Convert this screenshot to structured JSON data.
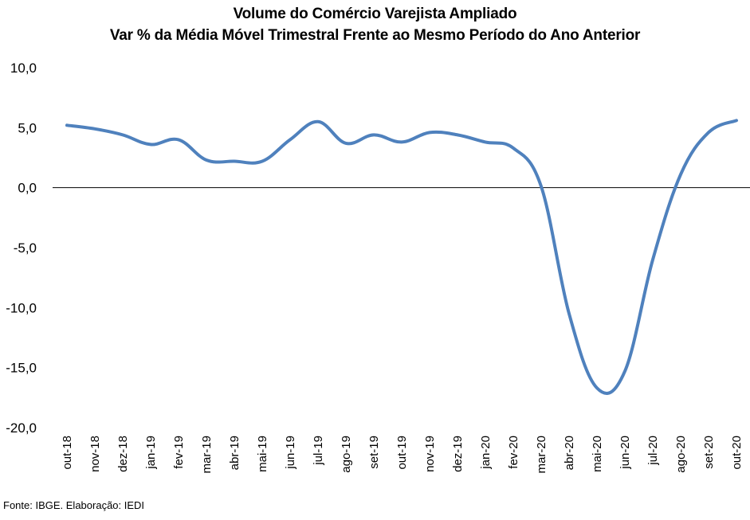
{
  "chart_data": {
    "type": "line",
    "title": "Volume do Comércio Varejista Ampliado",
    "subtitle": "Var % da Média Móvel Trimestral Frente ao Mesmo Período do Ano Anterior",
    "xlabel": "",
    "ylabel": "",
    "ylim": [
      -20,
      10
    ],
    "yticks": [
      "10,0",
      "5,0",
      "0,0",
      "-5,0",
      "-10,0",
      "-15,0",
      "-20,0"
    ],
    "ytick_values": [
      10,
      5,
      0,
      -5,
      -10,
      -15,
      -20
    ],
    "categories": [
      "out-18",
      "nov-18",
      "dez-18",
      "jan-19",
      "fev-19",
      "mar-19",
      "abr-19",
      "mai-19",
      "jun-19",
      "jul-19",
      "ago-19",
      "set-19",
      "out-19",
      "nov-19",
      "dez-19",
      "jan-20",
      "fev-20",
      "mar-20",
      "abr-20",
      "mai-20",
      "jun-20",
      "jul-20",
      "ago-20",
      "set-20",
      "out-20"
    ],
    "series": [
      {
        "values": [
          5.2,
          4.9,
          4.4,
          3.6,
          4.0,
          2.3,
          2.2,
          2.2,
          4.0,
          5.5,
          3.7,
          4.4,
          3.8,
          4.6,
          4.4,
          3.8,
          3.3,
          0.1,
          -10.5,
          -16.7,
          -15.3,
          -6.0,
          1.1,
          4.6,
          5.6
        ]
      }
    ],
    "color": "#4f81bd",
    "grid": false,
    "zero_line": true
  },
  "source": "Fonte: IBGE. Elaboração: IEDI"
}
